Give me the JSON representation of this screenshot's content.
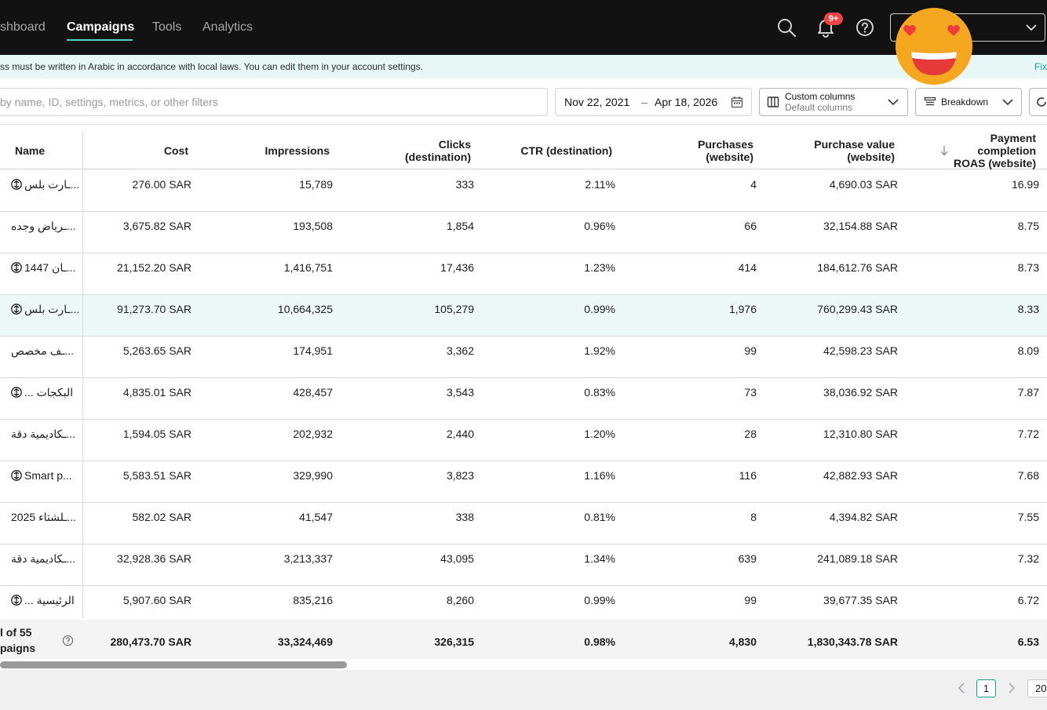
{
  "nav": {
    "dashboard": "shboard",
    "campaigns": "Campaigns",
    "tools": "Tools",
    "analytics": "Analytics",
    "notification_badge": "9+"
  },
  "notice": {
    "text": "ss must be written in Arabic in accordance with local laws. You can edit them in your account settings.",
    "fix_link": "Fix"
  },
  "toolbar": {
    "search_placeholder": "by name, ID, settings, metrics, or other filters",
    "date_start": "Nov 22, 2021",
    "date_sep": "–",
    "date_end": "Apr 18, 2026",
    "columns_label": "Custom columns",
    "columns_sub": "Default columns",
    "breakdown_label": "Breakdown"
  },
  "table": {
    "headers": {
      "name": "Name",
      "cost": "Cost",
      "impressions": "Impressions",
      "clicks_1": "Clicks",
      "clicks_2": "(destination)",
      "ctr": "CTR (destination)",
      "purchases_1": "Purchases",
      "purchases_2": "(website)",
      "pv_1": "Purchase value",
      "pv_2": "(website)",
      "roas_1": "Payment",
      "roas_2": "completion",
      "roas_3": "ROAS (website)"
    },
    "rows": [
      {
        "name": "ـارت بلس...",
        "icon": true,
        "cost": "276.00 SAR",
        "impressions": "15,789",
        "clicks": "333",
        "ctr": "2.11%",
        "purchases": "4",
        "purchase_value": "4,690.03 SAR",
        "roas": "16.99"
      },
      {
        "name": "ـرياض وجده...",
        "icon": false,
        "cost": "3,675.82 SAR",
        "impressions": "193,508",
        "clicks": "1,854",
        "ctr": "0.96%",
        "purchases": "66",
        "purchase_value": "32,154.88 SAR",
        "roas": "8.75"
      },
      {
        "name": "ـان 1447...",
        "icon": true,
        "cost": "21,152.20 SAR",
        "impressions": "1,416,751",
        "clicks": "17,436",
        "ctr": "1.23%",
        "purchases": "414",
        "purchase_value": "184,612.76 SAR",
        "roas": "8.73"
      },
      {
        "name": "ـارت بلس...",
        "icon": true,
        "cost": "91,273.70 SAR",
        "impressions": "10,664,325",
        "clicks": "105,279",
        "ctr": "0.99%",
        "purchases": "1,976",
        "purchase_value": "760,299.43 SAR",
        "roas": "8.33"
      },
      {
        "name": "ـف مخصص...",
        "icon": false,
        "cost": "5,263.65 SAR",
        "impressions": "174,951",
        "clicks": "3,362",
        "ctr": "1.92%",
        "purchases": "99",
        "purchase_value": "42,598.23 SAR",
        "roas": "8.09"
      },
      {
        "name": "... البكجات",
        "icon": true,
        "cost": "4,835.01 SAR",
        "impressions": "428,457",
        "clicks": "3,543",
        "ctr": "0.83%",
        "purchases": "73",
        "purchase_value": "38,036.92 SAR",
        "roas": "7.87"
      },
      {
        "name": "ـكاديمية دقة...",
        "icon": false,
        "cost": "1,594.05 SAR",
        "impressions": "202,932",
        "clicks": "2,440",
        "ctr": "1.20%",
        "purchases": "28",
        "purchase_value": "12,310.80 SAR",
        "roas": "7.72"
      },
      {
        "name": "Smart p...",
        "icon": true,
        "cost": "5,583.51 SAR",
        "impressions": "329,990",
        "clicks": "3,823",
        "ctr": "1.16%",
        "purchases": "116",
        "purchase_value": "42,882.93 SAR",
        "roas": "7.68"
      },
      {
        "name": "ـلشتاء 2025...",
        "icon": false,
        "cost": "582.02 SAR",
        "impressions": "41,547",
        "clicks": "338",
        "ctr": "0.81%",
        "purchases": "8",
        "purchase_value": "4,394.82 SAR",
        "roas": "7.55"
      },
      {
        "name": "ـكاديمية دقة...",
        "icon": false,
        "cost": "32,928.36 SAR",
        "impressions": "3,213,337",
        "clicks": "43,095",
        "ctr": "1.34%",
        "purchases": "639",
        "purchase_value": "241,089.18 SAR",
        "roas": "7.32"
      },
      {
        "name": "... الرئيسية",
        "icon": true,
        "cost": "5,907.60 SAR",
        "impressions": "835,216",
        "clicks": "8,260",
        "ctr": "0.99%",
        "purchases": "99",
        "purchase_value": "39,677.35 SAR",
        "roas": "6.72"
      }
    ],
    "highlighted_row": 3,
    "total": {
      "label_1": "l of 55",
      "label_2": "paigns",
      "cost": "280,473.70 SAR",
      "impressions": "33,324,469",
      "clicks": "326,315",
      "ctr": "0.98%",
      "purchases": "4,830",
      "purchase_value": "1,830,343.78 SAR",
      "roas": "6.53"
    }
  },
  "pagination": {
    "current_page": "1",
    "page_size": "20"
  },
  "colors": {
    "topbar_bg": "#121212",
    "accent": "#14a095",
    "notice_bg": "#e6f7f6",
    "badge": "#ef4444",
    "emoji_face": "#f5a81f"
  },
  "icons": [
    "search-icon",
    "bell-icon",
    "help-icon",
    "chevron-down-icon",
    "calendar-icon",
    "columns-icon",
    "breakdown-icon",
    "refresh-icon",
    "sort-down-icon",
    "campaign-type-icon",
    "chevron-left-icon",
    "chevron-right-icon",
    "heart-eyes-emoji"
  ]
}
